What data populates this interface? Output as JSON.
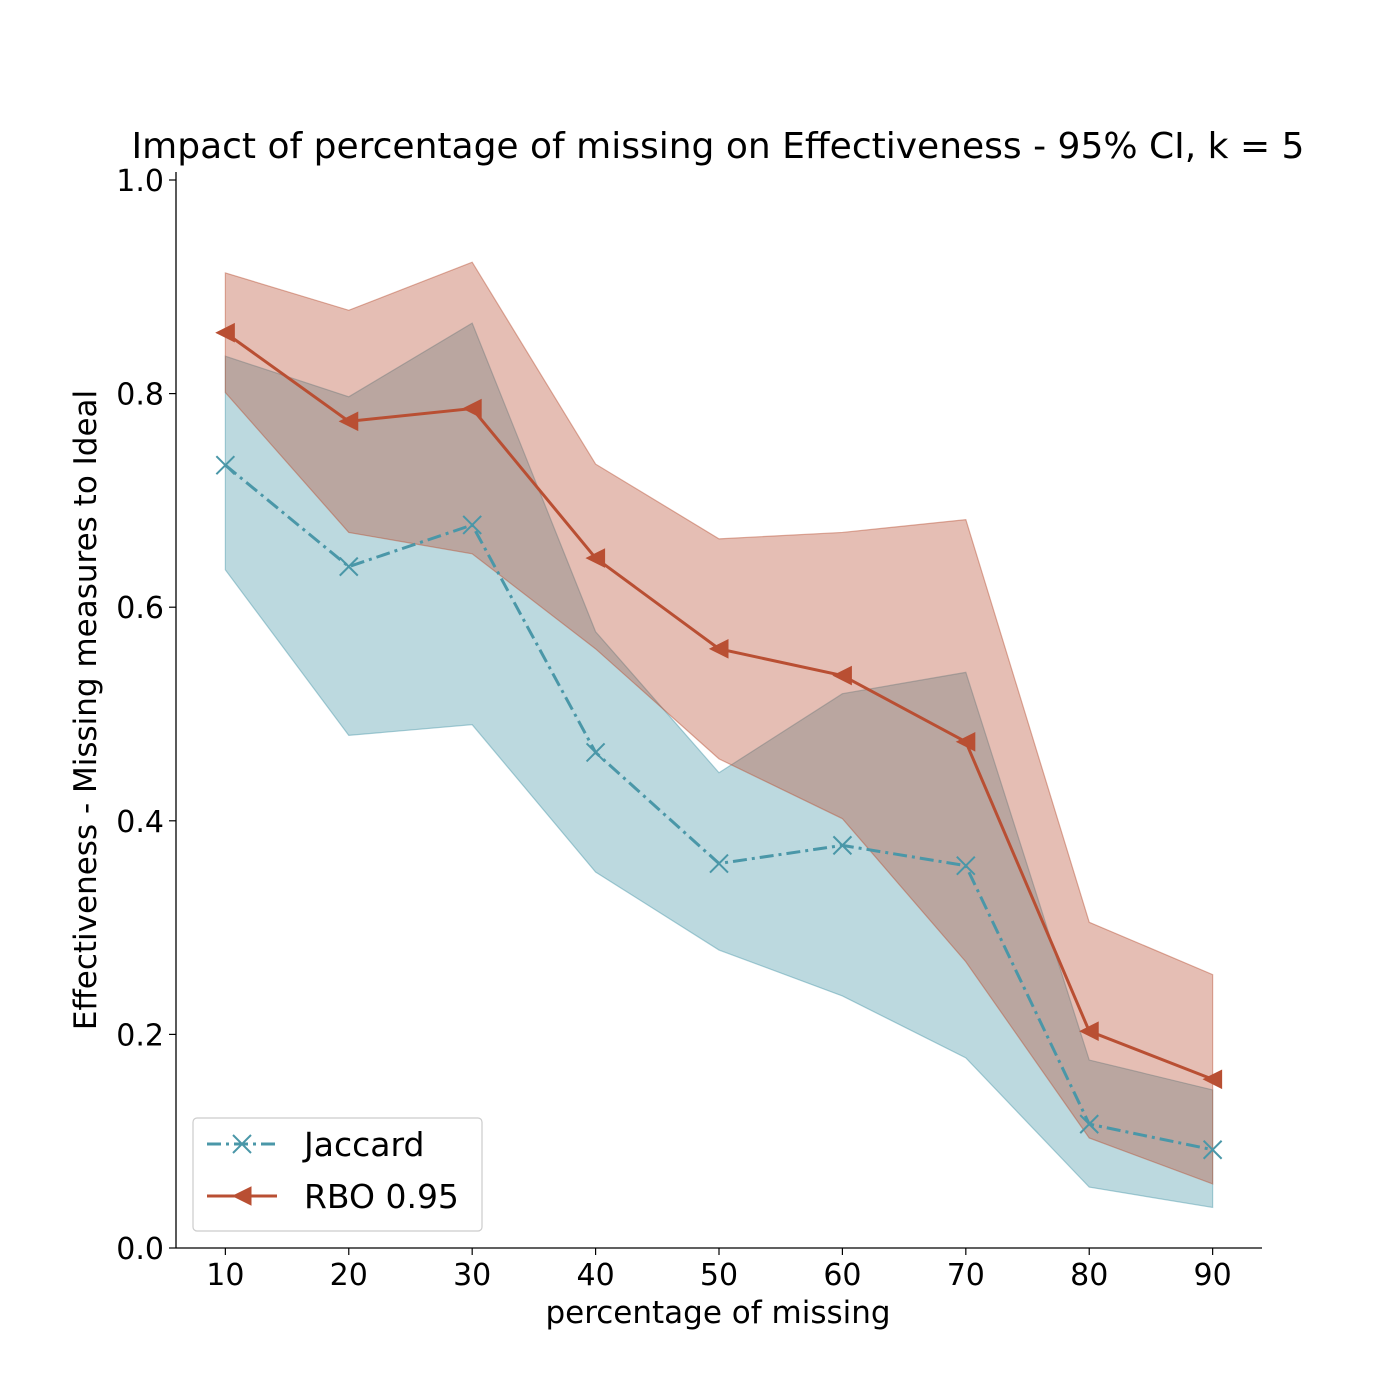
{
  "chart_data": {
    "type": "line",
    "title": "Impact of percentage of missing on Effectiveness - 95% CI, k = 5",
    "xlabel": "percentage of missing",
    "ylabel": "Effectiveness - Missing measures to Ideal",
    "x": [
      10,
      20,
      30,
      40,
      50,
      60,
      70,
      80,
      90
    ],
    "x_ticks": [
      "10",
      "20",
      "30",
      "40",
      "50",
      "60",
      "70",
      "80",
      "90"
    ],
    "xlim": [
      6,
      94
    ],
    "ylim": [
      0.0,
      1.0
    ],
    "y_ticks": [
      "0.0",
      "0.2",
      "0.4",
      "0.6",
      "0.8",
      "1.0"
    ],
    "grid": false,
    "legend_position": "lower-left",
    "series": [
      {
        "name": "Jaccard",
        "values": [
          0.733,
          0.638,
          0.677,
          0.464,
          0.36,
          0.377,
          0.358,
          0.116,
          0.092
        ],
        "ci_upper": [
          0.835,
          0.797,
          0.866,
          0.577,
          0.445,
          0.519,
          0.539,
          0.176,
          0.148
        ],
        "ci_lower": [
          0.635,
          0.48,
          0.49,
          0.352,
          0.279,
          0.236,
          0.178,
          0.057,
          0.038
        ],
        "color": "#4a97a8",
        "fill_color": "#b3d5de",
        "line_style": "dash-dot",
        "marker": "x"
      },
      {
        "name": "RBO 0.95",
        "values": [
          0.857,
          0.774,
          0.786,
          0.646,
          0.561,
          0.536,
          0.474,
          0.203,
          0.158
        ],
        "ci_upper": [
          0.913,
          0.878,
          0.923,
          0.734,
          0.664,
          0.67,
          0.682,
          0.305,
          0.256
        ],
        "ci_lower": [
          0.801,
          0.67,
          0.65,
          0.561,
          0.458,
          0.402,
          0.268,
          0.103,
          0.06
        ],
        "color": "#b94f33",
        "fill_color": "#ddaa9c",
        "line_style": "solid",
        "marker": "triangle-left"
      }
    ]
  }
}
